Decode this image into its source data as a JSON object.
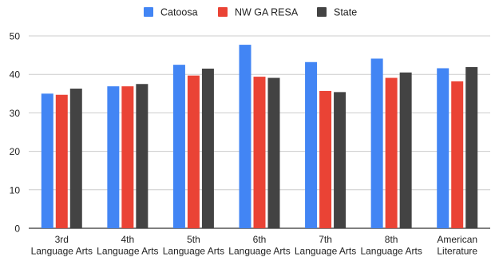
{
  "chart_data": {
    "type": "bar",
    "title": "",
    "xlabel": "",
    "ylabel": "",
    "ylim": [
      0,
      50
    ],
    "yticks": [
      0,
      10,
      20,
      30,
      40,
      50
    ],
    "grid": true,
    "legend_position": "top-center",
    "categories": [
      "3rd Language Arts",
      "4th Language Arts",
      "5th Language Arts",
      "6th Language Arts",
      "7th Language Arts",
      "8th Language Arts",
      "American Literature"
    ],
    "series": [
      {
        "name": "Catoosa",
        "color": "#4285f4",
        "values": [
          35.0,
          36.9,
          42.5,
          47.7,
          43.2,
          44.1,
          41.6
        ]
      },
      {
        "name": "NW GA RESA",
        "color": "#ea4335",
        "values": [
          34.7,
          36.9,
          39.7,
          39.4,
          35.7,
          39.1,
          38.2
        ]
      },
      {
        "name": "State",
        "color": "#434343",
        "values": [
          36.3,
          37.5,
          41.5,
          39.1,
          35.4,
          40.5,
          41.9
        ]
      }
    ]
  }
}
